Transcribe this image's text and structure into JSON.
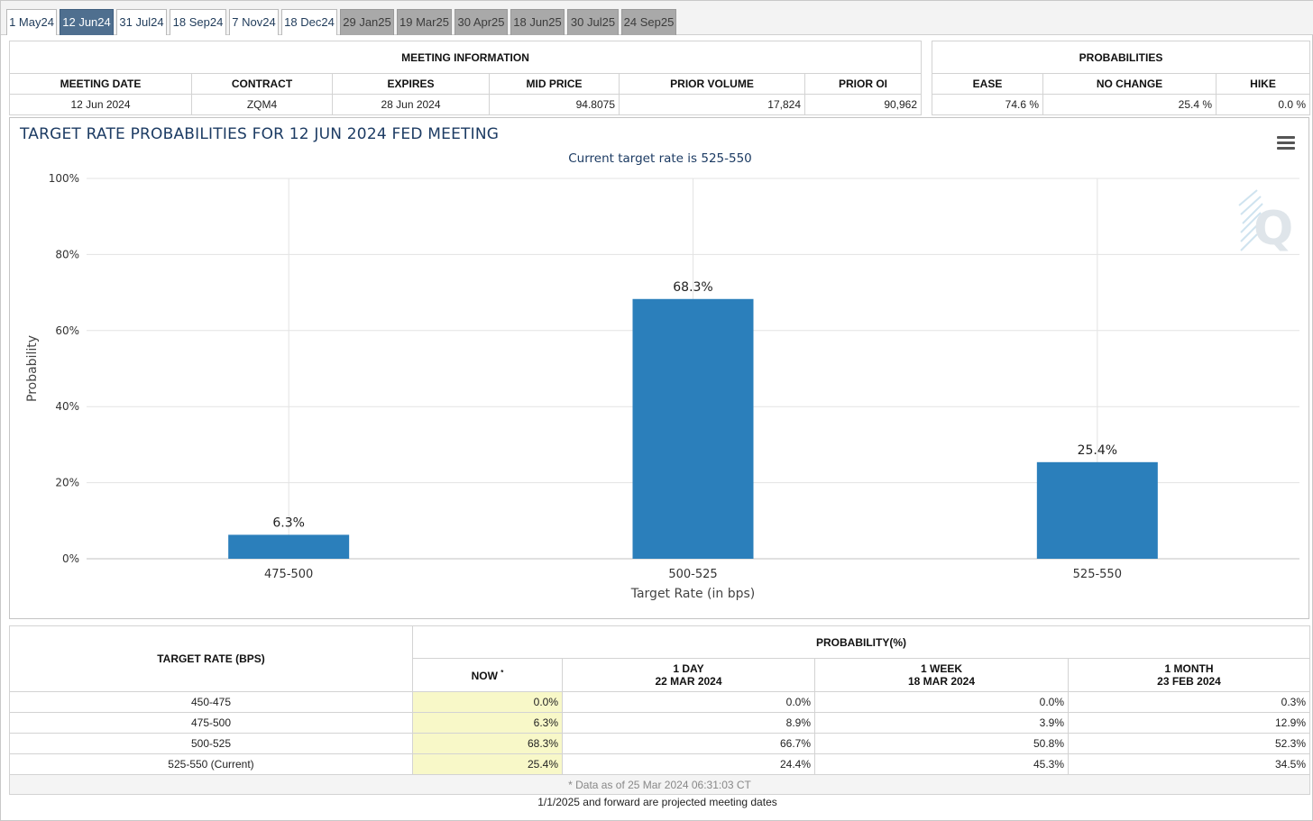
{
  "tabs": [
    {
      "label": "1 May24",
      "state": "normal"
    },
    {
      "label": "12 Jun24",
      "state": "active"
    },
    {
      "label": "31 Jul24",
      "state": "normal"
    },
    {
      "label": "18 Sep24",
      "state": "normal"
    },
    {
      "label": "7 Nov24",
      "state": "normal"
    },
    {
      "label": "18 Dec24",
      "state": "normal"
    },
    {
      "label": "29 Jan25",
      "state": "future"
    },
    {
      "label": "19 Mar25",
      "state": "future"
    },
    {
      "label": "30 Apr25",
      "state": "future"
    },
    {
      "label": "18 Jun25",
      "state": "future"
    },
    {
      "label": "30 Jul25",
      "state": "future"
    },
    {
      "label": "24 Sep25",
      "state": "future"
    }
  ],
  "meeting_info": {
    "heading": "MEETING INFORMATION",
    "columns": [
      "MEETING DATE",
      "CONTRACT",
      "EXPIRES",
      "MID PRICE",
      "PRIOR VOLUME",
      "PRIOR OI"
    ],
    "values": [
      "12 Jun 2024",
      "ZQM4",
      "28 Jun 2024",
      "94.8075",
      "17,824",
      "90,962"
    ]
  },
  "probabilities": {
    "heading": "PROBABILITIES",
    "columns": [
      "EASE",
      "NO CHANGE",
      "HIKE"
    ],
    "values": [
      "74.6 %",
      "25.4 %",
      "0.0 %"
    ]
  },
  "chart": {
    "title": "TARGET RATE PROBABILITIES FOR 12 JUN 2024 FED MEETING",
    "subtitle": "Current target rate is 525-550"
  },
  "chart_data": {
    "type": "bar",
    "title": "TARGET RATE PROBABILITIES FOR 12 JUN 2024 FED MEETING",
    "subtitle": "Current target rate is 525-550",
    "categories": [
      "475-500",
      "500-525",
      "525-550"
    ],
    "values": [
      6.3,
      68.3,
      25.4
    ],
    "data_labels": [
      "6.3%",
      "68.3%",
      "25.4%"
    ],
    "xlabel": "Target Rate (in bps)",
    "ylabel": "Probability",
    "ylim": [
      0,
      100
    ],
    "yticks": [
      "0%",
      "20%",
      "40%",
      "60%",
      "80%",
      "100%"
    ],
    "grid": true,
    "bar_color": "#2b7fbb"
  },
  "history": {
    "col_target": "TARGET RATE (BPS)",
    "prob_heading": "PROBABILITY(%)",
    "col_now": "NOW",
    "col_now_marker": "*",
    "col_1day": "1 DAY",
    "col_1day_date": "22 MAR 2024",
    "col_1week": "1 WEEK",
    "col_1week_date": "18 MAR 2024",
    "col_1month": "1 MONTH",
    "col_1month_date": "23 FEB 2024",
    "rows": [
      {
        "rate": "450-475",
        "now": "0.0%",
        "d1": "0.0%",
        "w1": "0.0%",
        "m1": "0.3%"
      },
      {
        "rate": "475-500",
        "now": "6.3%",
        "d1": "8.9%",
        "w1": "3.9%",
        "m1": "12.9%"
      },
      {
        "rate": "500-525",
        "now": "68.3%",
        "d1": "66.7%",
        "w1": "50.8%",
        "m1": "52.3%"
      },
      {
        "rate": "525-550 (Current)",
        "now": "25.4%",
        "d1": "24.4%",
        "w1": "45.3%",
        "m1": "34.5%"
      }
    ],
    "footnote": "* Data as of 25 Mar 2024 06:31:03 CT"
  },
  "projected_note": "1/1/2025 and forward are projected meeting dates",
  "colors": {
    "tab_active": "#4f6f8f",
    "tab_future": "#a9a9a9",
    "now_highlight": "#f8f8c8",
    "title_color": "#1c3b63"
  }
}
